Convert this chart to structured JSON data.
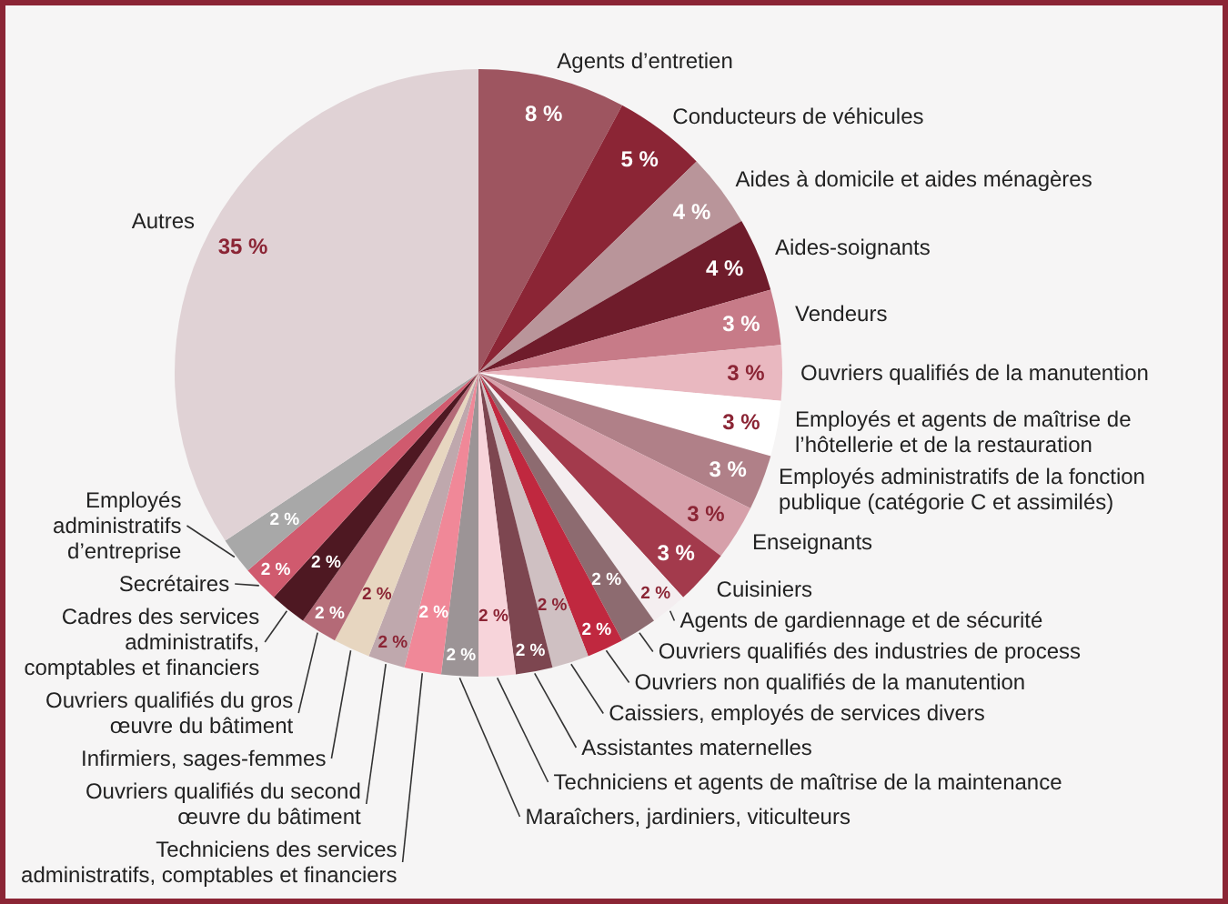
{
  "chart_data": {
    "type": "pie",
    "categories": [
      "Agents d’entretien",
      "Conducteurs de véhicules",
      "Aides à domicile et aides ménagères",
      "Aides-soignants",
      "Vendeurs",
      "Ouvriers qualifiés de la manutention",
      "Employés et agents de maîtrise de l’hôtellerie et de la restauration",
      "Employés administratifs de la fonction publique (catégorie C et assimilés)",
      "Enseignants",
      "Cuisiniers",
      "Agents de gardiennage et de sécurité",
      "Ouvriers qualifiés des industries de process",
      "Ouvriers non qualifiés de la manutention",
      "Caissiers, employés de services divers",
      "Assistantes maternelles",
      "Techniciens et agents de maîtrise de la maintenance",
      "Maraîchers, jardiniers, viticulteurs",
      "Techniciens des services administratifs, comptables et financiers",
      "Ouvriers qualifiés du second œuvre du bâtiment",
      "Infirmiers, sages-femmes",
      "Ouvriers qualifiés du gros œuvre du bâtiment",
      "Cadres des services administratifs, comptables et financiers",
      "Secrétaires",
      "Employés administratifs d’entreprise",
      "Autres"
    ],
    "values": [
      8,
      5,
      4,
      4,
      3,
      3,
      3,
      3,
      3,
      3,
      2,
      2,
      2,
      2,
      2,
      2,
      2,
      2,
      2,
      2,
      2,
      2,
      2,
      2,
      35
    ],
    "value_labels": [
      "8 %",
      "5 %",
      "4 %",
      "4 %",
      "3 %",
      "3 %",
      "3 %",
      "3 %",
      "3 %",
      "3 %",
      "2 %",
      "2 %",
      "2 %",
      "2 %",
      "2 %",
      "2 %",
      "2 %",
      "2 %",
      "2 %",
      "2 %",
      "2 %",
      "2 %",
      "2 %",
      "2 %",
      "35 %"
    ],
    "colors": [
      "#9e5560",
      "#8b2535",
      "#b9959a",
      "#6f1c2b",
      "#c77b88",
      "#e9b8c0",
      "#ffffff",
      "#b08088",
      "#d6a0aa",
      "#a33a4c",
      "#f4eef0",
      "#8d6b70",
      "#c0283f",
      "#cfc0c2",
      "#7d4650",
      "#f7d4da",
      "#9c9496",
      "#f08898",
      "#bfa8ad",
      "#e7d6c0",
      "#b46a77",
      "#4e1822",
      "#d05a6e",
      "#a8a8a8",
      "#e0d2d5"
    ]
  }
}
